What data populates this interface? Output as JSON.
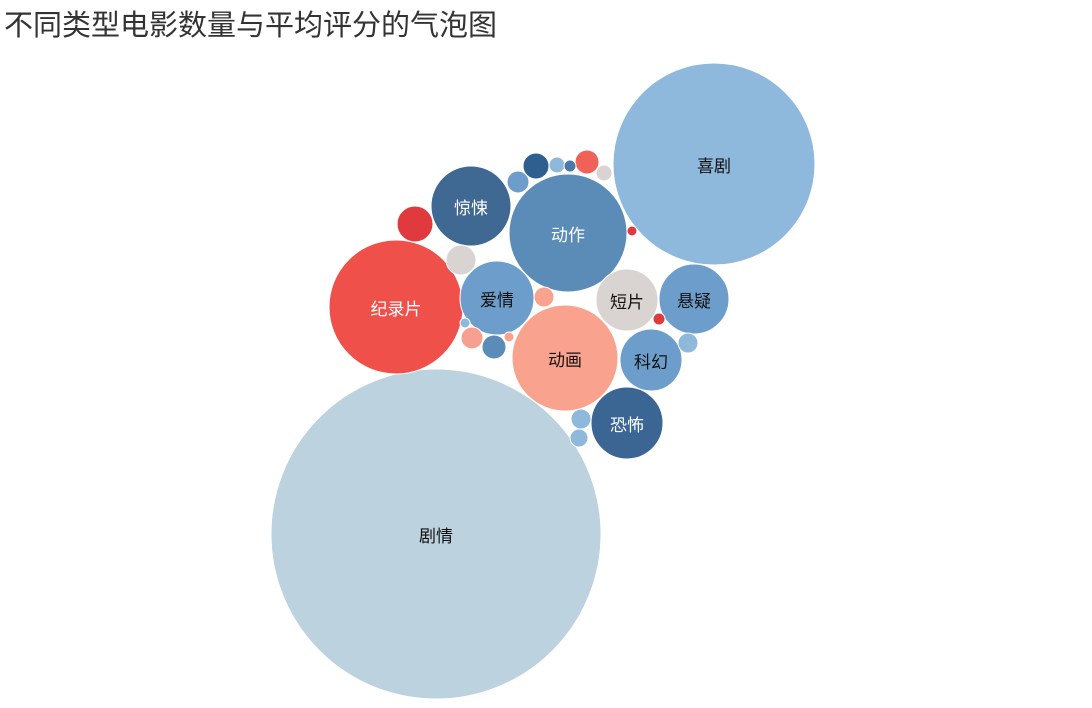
{
  "page": {
    "title": "不同类型电影数量与平均评分的气泡图"
  },
  "chart_data": {
    "type": "bubble",
    "title": "不同类型电影数量与平均评分的气泡图",
    "color_scale": {
      "low": "#3a6794",
      "mid_low": "#8fb9dc",
      "mid": "#d9d4d2",
      "mid_high": "#f9a38f",
      "high": "#e03a38"
    },
    "bubbles": [
      {
        "label": "剧情",
        "color": "#bcd2de",
        "label_color": "#111111"
      },
      {
        "label": "喜剧",
        "color": "#8fb9dc",
        "label_color": "#111111"
      },
      {
        "label": "纪录片",
        "color": "#ef5049",
        "label_color": "#ffffff"
      },
      {
        "label": "动作",
        "color": "#5b8cb7",
        "label_color": "#ffffff"
      },
      {
        "label": "动画",
        "color": "#f9a38f",
        "label_color": "#111111"
      },
      {
        "label": "惊悚",
        "color": "#3f6893",
        "label_color": "#ffffff"
      },
      {
        "label": "爱情",
        "color": "#6d9ecb",
        "label_color": "#111111"
      },
      {
        "label": "悬疑",
        "color": "#6d9ecb",
        "label_color": "#111111"
      },
      {
        "label": "短片",
        "color": "#d9d4d2",
        "label_color": "#111111"
      },
      {
        "label": "科幻",
        "color": "#6d9ecb",
        "label_color": "#111111"
      },
      {
        "label": "恐怖",
        "color": "#3b6592",
        "label_color": "#ffffff"
      },
      {
        "label": "",
        "color": "#e03a3e"
      },
      {
        "label": "",
        "color": "#d9d4d2"
      },
      {
        "label": "",
        "color": "#2f5f8f"
      },
      {
        "label": "",
        "color": "#f06158"
      },
      {
        "label": "",
        "color": "#6d9ecb"
      },
      {
        "label": "",
        "color": "#8fb9dc"
      },
      {
        "label": "",
        "color": "#4a78a8"
      },
      {
        "label": "",
        "color": "#d9d4d2"
      },
      {
        "label": "",
        "color": "#f7a08f"
      },
      {
        "label": "",
        "color": "#f9a38f"
      },
      {
        "label": "",
        "color": "#5b8cb7"
      },
      {
        "label": "",
        "color": "#8fb9dc"
      },
      {
        "label": "",
        "color": "#8fb9dc"
      },
      {
        "label": "",
        "color": "#8fb9dc"
      },
      {
        "label": "",
        "color": "#f9a38f"
      },
      {
        "label": "",
        "color": "#e03a3e"
      },
      {
        "label": "",
        "color": "#e03a3e"
      },
      {
        "label": "",
        "color": "#8fb9dc"
      }
    ]
  }
}
